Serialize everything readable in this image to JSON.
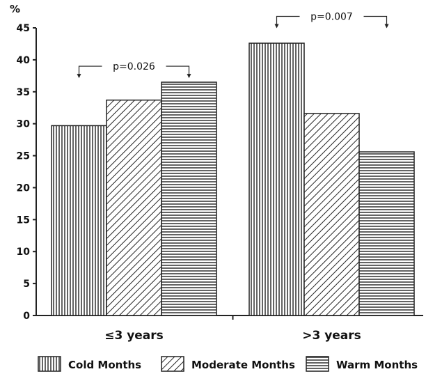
{
  "chart_data": {
    "type": "bar",
    "title": "",
    "xlabel": "",
    "ylabel": "%",
    "ylim": [
      0,
      45
    ],
    "yticks": [
      0,
      5,
      10,
      15,
      20,
      25,
      30,
      35,
      40,
      45
    ],
    "grid": false,
    "legend_position": "bottom",
    "categories": [
      "≤3 years",
      ">3 years"
    ],
    "series": [
      {
        "name": "Cold Months",
        "pattern": "vertical-lines",
        "values": [
          29.7,
          42.6
        ]
      },
      {
        "name": "Moderate Months",
        "pattern": "diagonal-lines",
        "values": [
          33.7,
          31.6
        ]
      },
      {
        "name": "Warm Months",
        "pattern": "horizontal-lines",
        "values": [
          36.5,
          25.6
        ]
      }
    ],
    "annotations": [
      {
        "text": "p=0.026",
        "category_index": 0,
        "from_series": 0,
        "to_series": 2,
        "level": 39
      },
      {
        "text": "p=0.007",
        "category_index": 1,
        "from_series": 0,
        "to_series": 2,
        "level": 46.8
      }
    ],
    "colors": {
      "ink": "#222222",
      "background": "#ffffff"
    }
  }
}
